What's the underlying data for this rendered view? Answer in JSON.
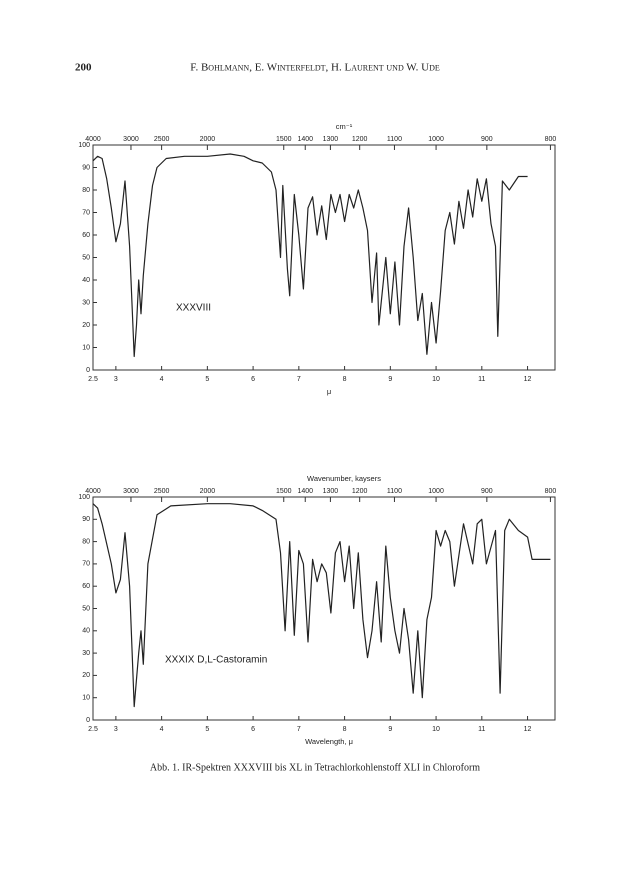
{
  "header": {
    "page": "200",
    "authors": "F. Bohlmann, E. Winterfeldt, H. Laurent und W. Ude"
  },
  "chart_data": [
    {
      "type": "line",
      "top_axis_label": "cm⁻¹",
      "xlabel": "μ",
      "annotation": "XXXVIII",
      "xlim": [
        2.5,
        12.6
      ],
      "ylim": [
        0,
        100
      ],
      "xticks": [
        2.5,
        3,
        4,
        5,
        6,
        7,
        8,
        9,
        10,
        11,
        12
      ],
      "yticks": [
        0,
        10,
        20,
        30,
        40,
        50,
        60,
        70,
        80,
        90,
        100
      ],
      "x2ticks": [
        {
          "value": 2.5,
          "label": "4000"
        },
        {
          "value": 3.33,
          "label": "3000"
        },
        {
          "value": 4,
          "label": "2500"
        },
        {
          "value": 5,
          "label": "2000"
        },
        {
          "value": 6.67,
          "label": "1500"
        },
        {
          "value": 7.14,
          "label": "1400"
        },
        {
          "value": 7.69,
          "label": "1300"
        },
        {
          "value": 8.33,
          "label": "1200"
        },
        {
          "value": 9.09,
          "label": "1100"
        },
        {
          "value": 10,
          "label": "1000"
        },
        {
          "value": 11.11,
          "label": "900"
        },
        {
          "value": 12.5,
          "label": "800"
        }
      ],
      "color": "#222222",
      "x": [
        2.5,
        2.6,
        2.7,
        2.8,
        2.9,
        3.0,
        3.1,
        3.2,
        3.3,
        3.4,
        3.45,
        3.5,
        3.55,
        3.6,
        3.7,
        3.8,
        3.9,
        4.1,
        4.5,
        5.0,
        5.5,
        5.8,
        6.0,
        6.2,
        6.4,
        6.5,
        6.6,
        6.65,
        6.75,
        6.8,
        6.9,
        7.0,
        7.1,
        7.2,
        7.3,
        7.4,
        7.5,
        7.6,
        7.7,
        7.8,
        7.9,
        8.0,
        8.1,
        8.2,
        8.3,
        8.4,
        8.5,
        8.6,
        8.7,
        8.75,
        8.9,
        9.0,
        9.1,
        9.2,
        9.3,
        9.4,
        9.5,
        9.6,
        9.7,
        9.8,
        9.9,
        10.0,
        10.1,
        10.2,
        10.3,
        10.4,
        10.5,
        10.6,
        10.7,
        10.8,
        10.9,
        11.0,
        11.1,
        11.2,
        11.3,
        11.35,
        11.45,
        11.6,
        11.8,
        12.0
      ],
      "values": [
        93,
        95,
        94,
        85,
        72,
        57,
        65,
        84,
        55,
        6,
        20,
        40,
        25,
        42,
        65,
        82,
        90,
        94,
        95,
        95,
        96,
        95,
        93,
        92,
        88,
        80,
        50,
        82,
        45,
        33,
        78,
        60,
        36,
        72,
        77,
        60,
        73,
        58,
        78,
        70,
        78,
        66,
        78,
        72,
        80,
        72,
        62,
        30,
        52,
        20,
        50,
        25,
        48,
        20,
        55,
        72,
        50,
        22,
        34,
        7,
        30,
        12,
        35,
        62,
        70,
        56,
        75,
        63,
        80,
        68,
        85,
        75,
        85,
        65,
        55,
        15,
        84,
        80,
        86,
        86
      ]
    },
    {
      "type": "line",
      "top_axis_label": "Wavenumber,  kaysers",
      "xlabel": "Wavelength,  μ",
      "annotation": "XXXIX  D,L-Castoramin",
      "xlim": [
        2.5,
        12.6
      ],
      "ylim": [
        0,
        100
      ],
      "xticks": [
        2.5,
        3,
        4,
        5,
        6,
        7,
        8,
        9,
        10,
        11,
        12
      ],
      "yticks": [
        0,
        10,
        20,
        30,
        40,
        50,
        60,
        70,
        80,
        90,
        100
      ],
      "x2ticks": [
        {
          "value": 2.5,
          "label": "4000"
        },
        {
          "value": 3.33,
          "label": "3000"
        },
        {
          "value": 4,
          "label": "2500"
        },
        {
          "value": 5,
          "label": "2000"
        },
        {
          "value": 6.67,
          "label": "1500"
        },
        {
          "value": 7.14,
          "label": "1400"
        },
        {
          "value": 7.69,
          "label": "1300"
        },
        {
          "value": 8.33,
          "label": "1200"
        },
        {
          "value": 9.09,
          "label": "1100"
        },
        {
          "value": 10,
          "label": "1000"
        },
        {
          "value": 11.11,
          "label": "900"
        },
        {
          "value": 12.5,
          "label": "800"
        }
      ],
      "color": "#222222",
      "x": [
        2.5,
        2.6,
        2.7,
        2.9,
        3.0,
        3.1,
        3.2,
        3.3,
        3.4,
        3.5,
        3.55,
        3.6,
        3.7,
        3.9,
        4.2,
        5.0,
        5.5,
        6.0,
        6.2,
        6.5,
        6.6,
        6.7,
        6.8,
        6.9,
        7.0,
        7.1,
        7.2,
        7.3,
        7.4,
        7.5,
        7.6,
        7.7,
        7.8,
        7.9,
        8.0,
        8.1,
        8.2,
        8.3,
        8.4,
        8.5,
        8.6,
        8.7,
        8.8,
        8.9,
        9.0,
        9.1,
        9.2,
        9.3,
        9.4,
        9.5,
        9.6,
        9.7,
        9.8,
        9.9,
        10.0,
        10.1,
        10.2,
        10.3,
        10.4,
        10.6,
        10.8,
        10.9,
        11.0,
        11.1,
        11.3,
        11.4,
        11.5,
        11.6,
        11.8,
        12.0,
        12.1,
        12.5
      ],
      "values": [
        97,
        95,
        88,
        70,
        57,
        63,
        84,
        60,
        6,
        30,
        40,
        25,
        70,
        92,
        96,
        97,
        97,
        96,
        94,
        90,
        75,
        40,
        80,
        38,
        76,
        70,
        35,
        72,
        62,
        70,
        66,
        48,
        75,
        80,
        62,
        78,
        50,
        75,
        45,
        28,
        40,
        62,
        35,
        78,
        55,
        40,
        30,
        50,
        36,
        12,
        40,
        10,
        45,
        55,
        85,
        78,
        85,
        80,
        60,
        88,
        70,
        88,
        90,
        70,
        85,
        12,
        85,
        90,
        85,
        82,
        72,
        72
      ]
    }
  ],
  "caption": "Abb. 1.  IR-Spektren XXXVIII bis XL in Tetrachlorkohlenstoff XLI in Chloroform"
}
